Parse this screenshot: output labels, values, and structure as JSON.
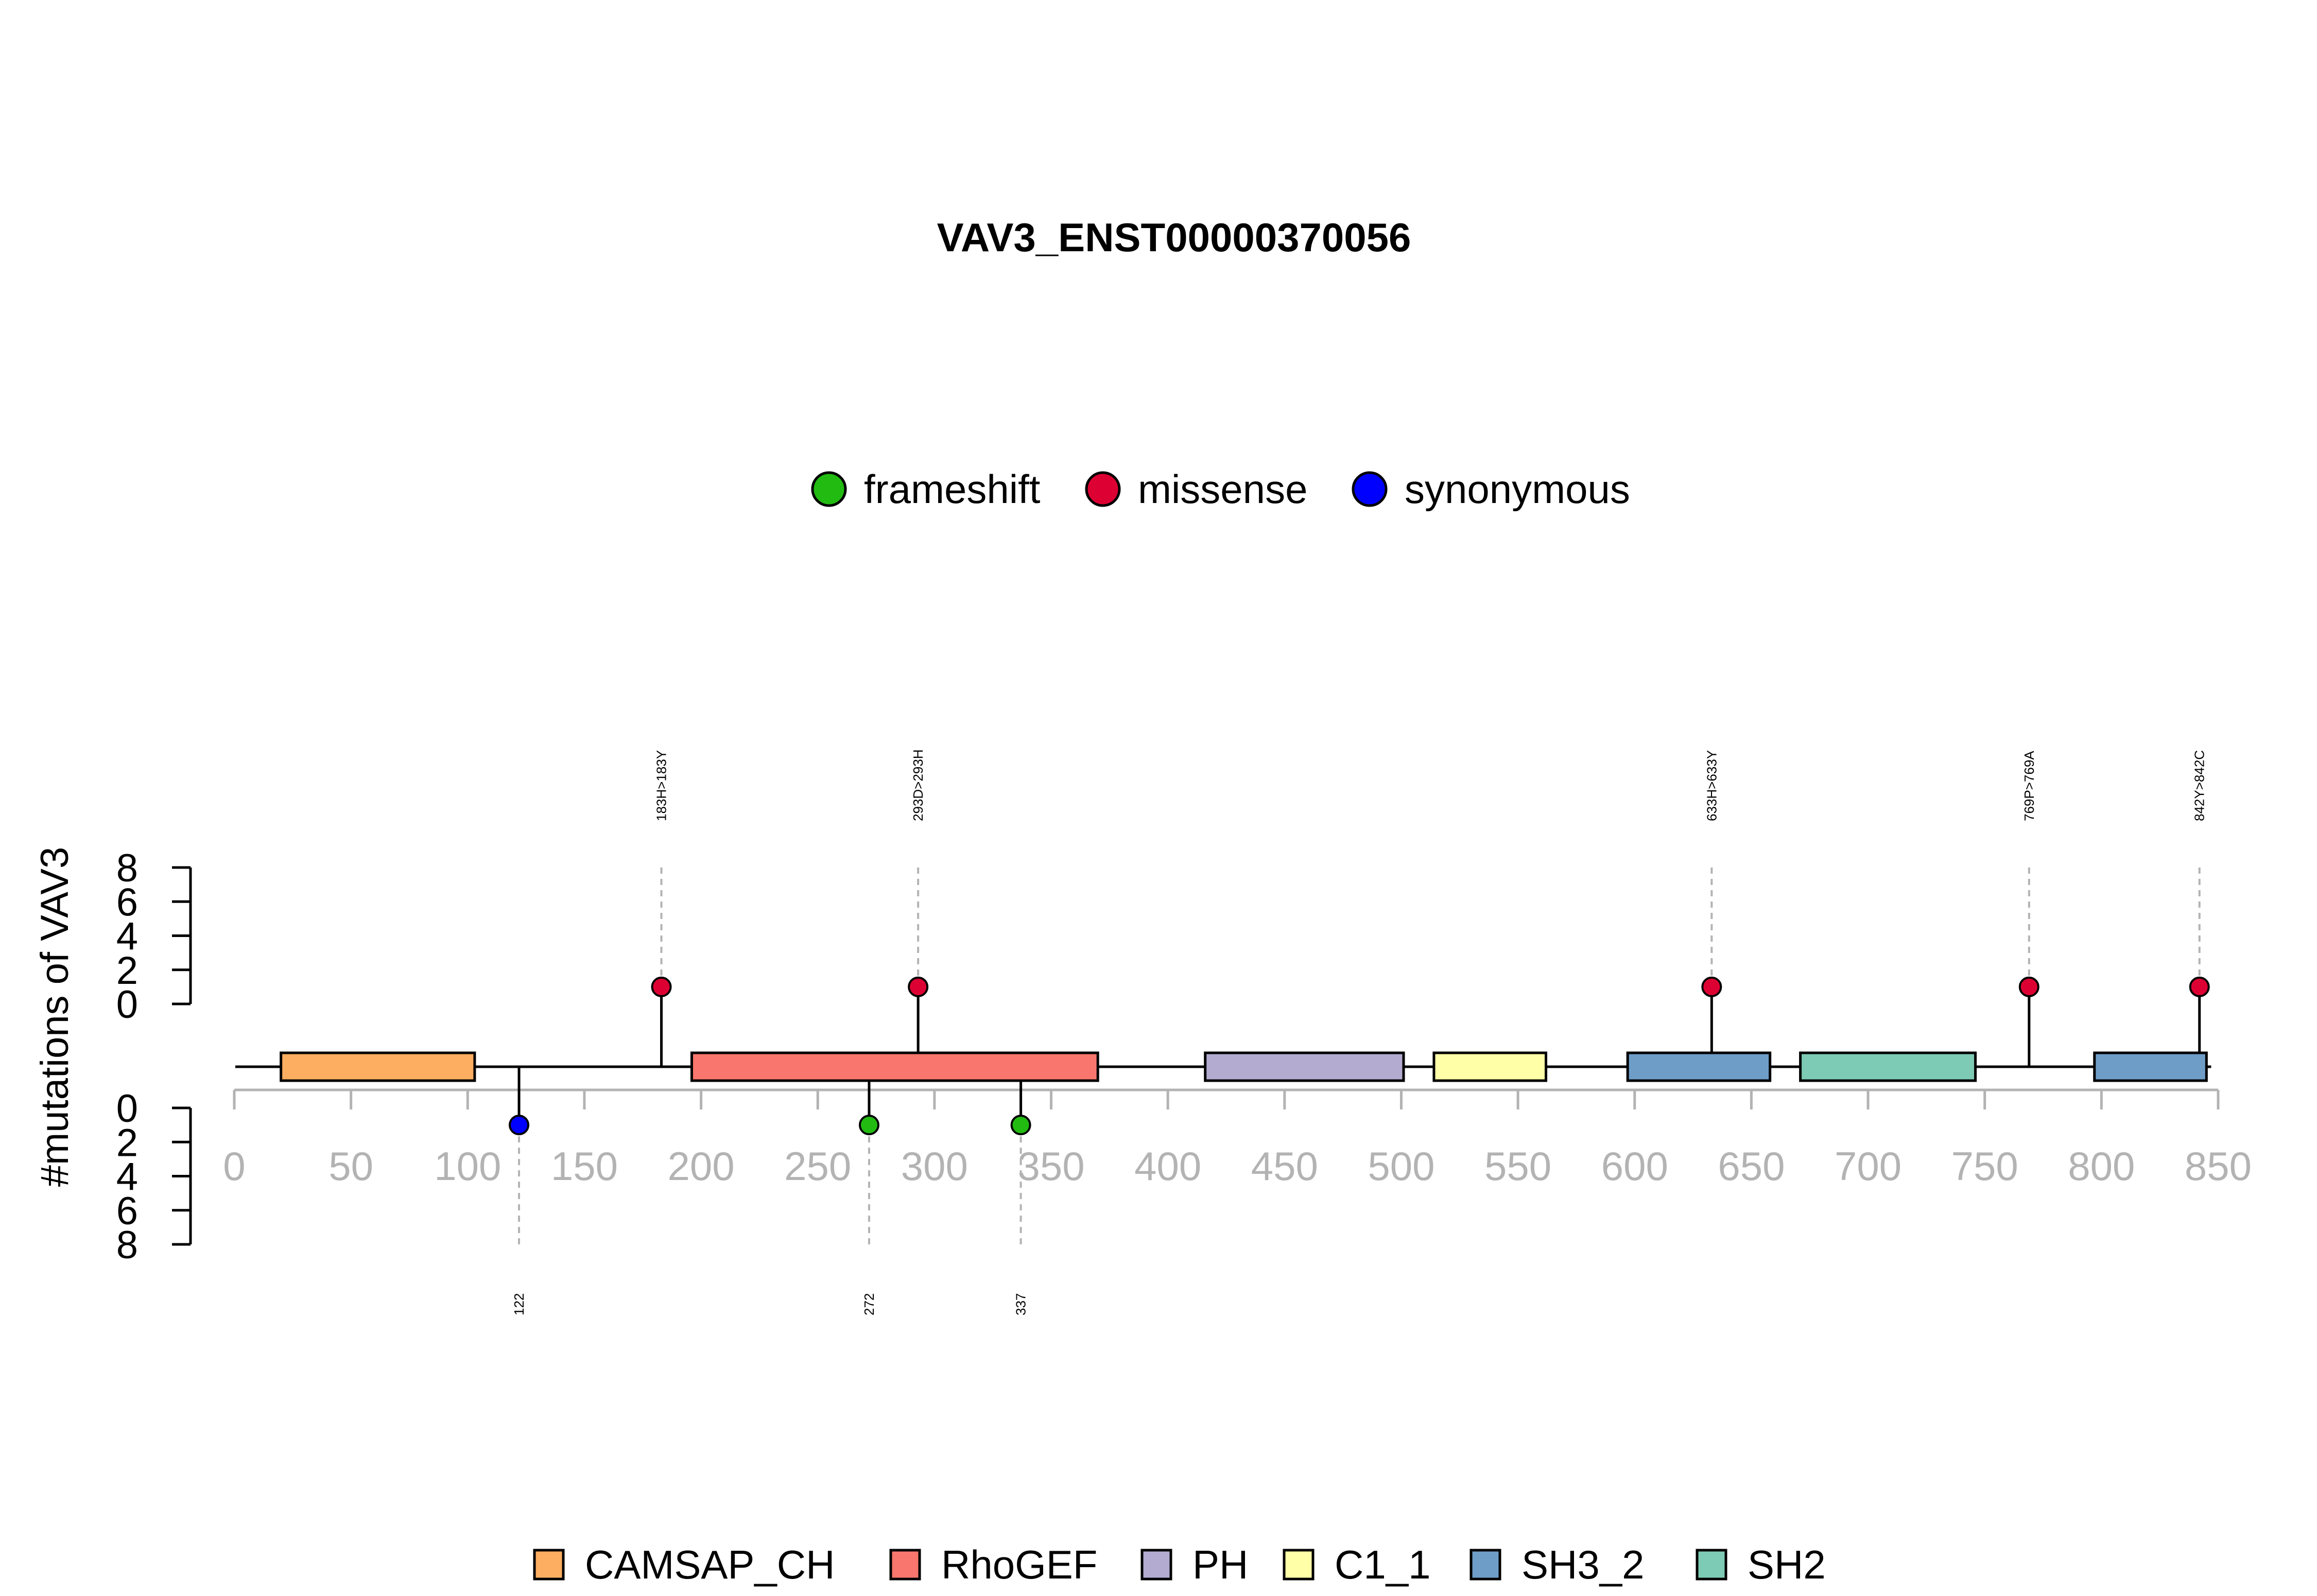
{
  "chart_data": {
    "type": "lollipop",
    "title": "VAV3_ENST00000370056",
    "ylabel": "#mutations of VAV3",
    "xlim": [
      0,
      850
    ],
    "x_ticks": [
      0,
      50,
      100,
      150,
      200,
      250,
      300,
      350,
      400,
      450,
      500,
      550,
      600,
      650,
      700,
      750,
      800,
      850
    ],
    "y_ticks_top": [
      0,
      2,
      4,
      6,
      8
    ],
    "y_ticks_bottom": [
      0,
      2,
      4,
      6,
      8
    ],
    "ylim": [
      0,
      8
    ],
    "mutation_legend": [
      {
        "name": "frameshift",
        "color": "#22BB11"
      },
      {
        "name": "missense",
        "color": "#DD0033"
      },
      {
        "name": "synonymous",
        "color": "#0000FF"
      }
    ],
    "domain_legend": [
      {
        "name": "CAMSAP_CH",
        "color": "#FDAE61"
      },
      {
        "name": "RhoGEF",
        "color": "#F8766D"
      },
      {
        "name": "PH",
        "color": "#B3ABD0"
      },
      {
        "name": "C1_1",
        "color": "#FFFFA8"
      },
      {
        "name": "SH3_2",
        "color": "#6E9DC8"
      },
      {
        "name": "SH2",
        "color": "#7ECBB5"
      }
    ],
    "domains": [
      {
        "name": "CAMSAP_CH",
        "start": 20,
        "end": 103,
        "color": "#FDAE61"
      },
      {
        "name": "RhoGEF",
        "start": 196,
        "end": 370,
        "color": "#F8766D"
      },
      {
        "name": "PH",
        "start": 416,
        "end": 501,
        "color": "#B3ABD0"
      },
      {
        "name": "C1_1",
        "start": 514,
        "end": 562,
        "color": "#FFFFA8"
      },
      {
        "name": "SH3_2",
        "start": 597,
        "end": 658,
        "color": "#6E9DC8"
      },
      {
        "name": "SH2",
        "start": 671,
        "end": 746,
        "color": "#7ECBB5"
      },
      {
        "name": "SH3_2",
        "start": 797,
        "end": 845,
        "color": "#6E9DC8"
      }
    ],
    "mutations_top": [
      {
        "position": 183,
        "count": 1,
        "type": "missense",
        "label": "183H>183Y",
        "color": "#DD0033"
      },
      {
        "position": 293,
        "count": 1,
        "type": "missense",
        "label": "293D>293H",
        "color": "#DD0033"
      },
      {
        "position": 633,
        "count": 1,
        "type": "missense",
        "label": "633H>633Y",
        "color": "#DD0033"
      },
      {
        "position": 769,
        "count": 1,
        "type": "missense",
        "label": "769P>769A",
        "color": "#DD0033"
      },
      {
        "position": 842,
        "count": 1,
        "type": "missense",
        "label": "842Y>842C",
        "color": "#DD0033"
      }
    ],
    "mutations_bottom": [
      {
        "position": 122,
        "count": 1,
        "type": "synonymous",
        "label": "122",
        "color": "#0000FF"
      },
      {
        "position": 272,
        "count": 1,
        "type": "frameshift",
        "label": "272",
        "color": "#22BB11"
      },
      {
        "position": 337,
        "count": 1,
        "type": "frameshift",
        "label": "337",
        "color": "#22BB11"
      }
    ],
    "protein_length": 847
  }
}
